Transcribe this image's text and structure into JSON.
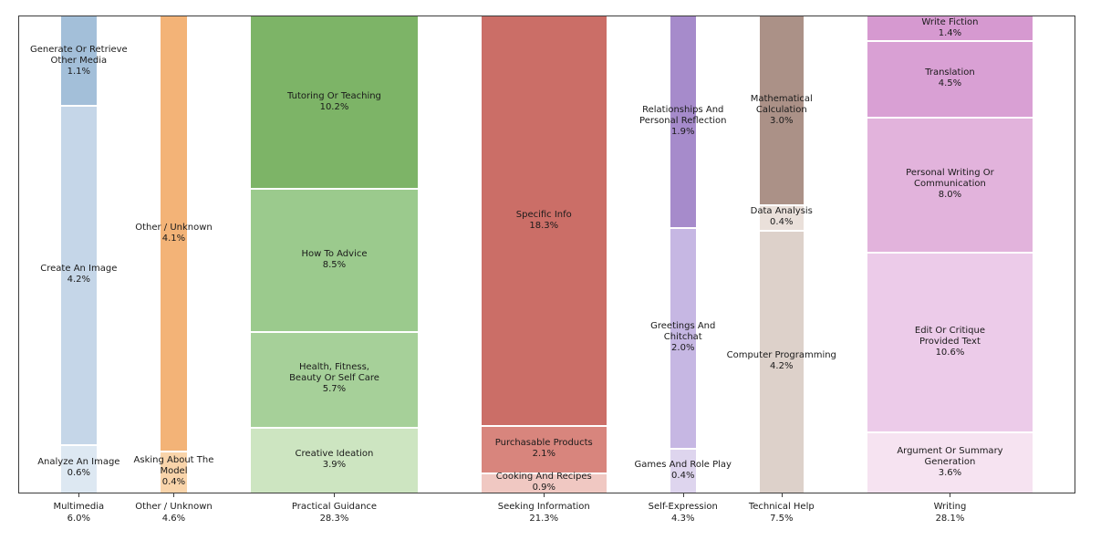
{
  "chart_data": {
    "type": "mosaic",
    "title": "",
    "legend": "none",
    "background_color": "#ffffff",
    "border_color": "#3c3c3c",
    "divider_color": "#ffffff",
    "text_color": "#1a1a1a",
    "x_axis_tick_format": "category name above percent",
    "categories": [
      {
        "label": "Multimedia",
        "pct": 6.0,
        "pct_label": "6.0%",
        "segments": [
          {
            "label": "Generate Or Retrieve Other Media",
            "pct": 1.1,
            "pct_label": "1.1%",
            "lines": [
              "Generate Or Retrieve",
              "Other Media"
            ],
            "color": "#a3bfd9"
          },
          {
            "label": "Create An Image",
            "pct": 4.2,
            "pct_label": "4.2%",
            "lines": [
              "Create An Image"
            ],
            "color": "#c5d6e8"
          },
          {
            "label": "Analyze An Image",
            "pct": 0.6,
            "pct_label": "0.6%",
            "lines": [
              "Analyze An Image"
            ],
            "color": "#dde8f2"
          }
        ]
      },
      {
        "label": "Other / Unknown",
        "pct": 4.6,
        "pct_label": "4.6%",
        "segments": [
          {
            "label": "Other / Unknown",
            "pct": 4.1,
            "pct_label": "4.1%",
            "lines": [
              "Other / Unknown"
            ],
            "color": "#f3b377"
          },
          {
            "label": "Asking About The Model",
            "pct": 0.4,
            "pct_label": "0.4%",
            "lines": [
              "Asking About The",
              "Model"
            ],
            "color": "#f9d4aa"
          }
        ]
      },
      {
        "label": "Practical Guidance",
        "pct": 28.3,
        "pct_label": "28.3%",
        "segments": [
          {
            "label": "Tutoring Or Teaching",
            "pct": 10.2,
            "pct_label": "10.2%",
            "lines": [
              "Tutoring Or Teaching"
            ],
            "color": "#7db467"
          },
          {
            "label": "How To Advice",
            "pct": 8.5,
            "pct_label": "8.5%",
            "lines": [
              "How To Advice"
            ],
            "color": "#9bca8d"
          },
          {
            "label": "Health, Fitness, Beauty Or Self Care",
            "pct": 5.7,
            "pct_label": "5.7%",
            "lines": [
              "Health, Fitness,",
              "Beauty Or Self Care"
            ],
            "color": "#a6d099"
          },
          {
            "label": "Creative Ideation",
            "pct": 3.9,
            "pct_label": "3.9%",
            "lines": [
              "Creative Ideation"
            ],
            "color": "#cde5c1"
          }
        ]
      },
      {
        "label": "Seeking Information",
        "pct": 21.3,
        "pct_label": "21.3%",
        "segments": [
          {
            "label": "Specific Info",
            "pct": 18.3,
            "pct_label": "18.3%",
            "lines": [
              "Specific Info"
            ],
            "color": "#cb6e67"
          },
          {
            "label": "Purchasable Products",
            "pct": 2.1,
            "pct_label": "2.1%",
            "lines": [
              "Purchasable Products"
            ],
            "color": "#d8857d"
          },
          {
            "label": "Cooking And Recipes",
            "pct": 0.9,
            "pct_label": "0.9%",
            "lines": [
              "Cooking And Recipes"
            ],
            "color": "#f0c8c2"
          }
        ]
      },
      {
        "label": "Self-Expression",
        "pct": 4.3,
        "pct_label": "4.3%",
        "segments": [
          {
            "label": "Relationships And Personal Reflection",
            "pct": 1.9,
            "pct_label": "1.9%",
            "lines": [
              "Relationships And",
              "Personal Reflection"
            ],
            "color": "#a68bcb"
          },
          {
            "label": "Greetings And Chitchat",
            "pct": 2.0,
            "pct_label": "2.0%",
            "lines": [
              "Greetings And",
              "Chitchat"
            ],
            "color": "#c6b7e3"
          },
          {
            "label": "Games And Role Play",
            "pct": 0.4,
            "pct_label": "0.4%",
            "lines": [
              "Games And Role Play"
            ],
            "color": "#ded5ee"
          }
        ]
      },
      {
        "label": "Technical Help",
        "pct": 7.5,
        "pct_label": "7.5%",
        "segments": [
          {
            "label": "Mathematical Calculation",
            "pct": 3.0,
            "pct_label": "3.0%",
            "lines": [
              "Mathematical",
              "Calculation"
            ],
            "color": "#ab9187"
          },
          {
            "label": "Data Analysis",
            "pct": 0.4,
            "pct_label": "0.4%",
            "lines": [
              "Data Analysis"
            ],
            "color": "#eae0da"
          },
          {
            "label": "Computer Programming",
            "pct": 4.2,
            "pct_label": "4.2%",
            "lines": [
              "Computer Programming"
            ],
            "color": "#ddd1ca"
          }
        ]
      },
      {
        "label": "Writing",
        "pct": 28.1,
        "pct_label": "28.1%",
        "segments": [
          {
            "label": "Write Fiction",
            "pct": 1.4,
            "pct_label": "1.4%",
            "lines": [
              "Write Fiction"
            ],
            "color": "#d699d0"
          },
          {
            "label": "Translation",
            "pct": 4.5,
            "pct_label": "4.5%",
            "lines": [
              "Translation"
            ],
            "color": "#d9a0d4"
          },
          {
            "label": "Personal Writing Or Communication",
            "pct": 8.0,
            "pct_label": "8.0%",
            "lines": [
              "Personal Writing Or",
              "Communication"
            ],
            "color": "#e2b3dc"
          },
          {
            "label": "Edit Or Critique Provided Text",
            "pct": 10.6,
            "pct_label": "10.6%",
            "lines": [
              "Edit Or Critique",
              "Provided Text"
            ],
            "color": "#eccbe9"
          },
          {
            "label": "Argument Or Summary Generation",
            "pct": 3.6,
            "pct_label": "3.6%",
            "lines": [
              "Argument Or Summary",
              "Generation"
            ],
            "color": "#f6e3f1"
          }
        ]
      }
    ]
  }
}
